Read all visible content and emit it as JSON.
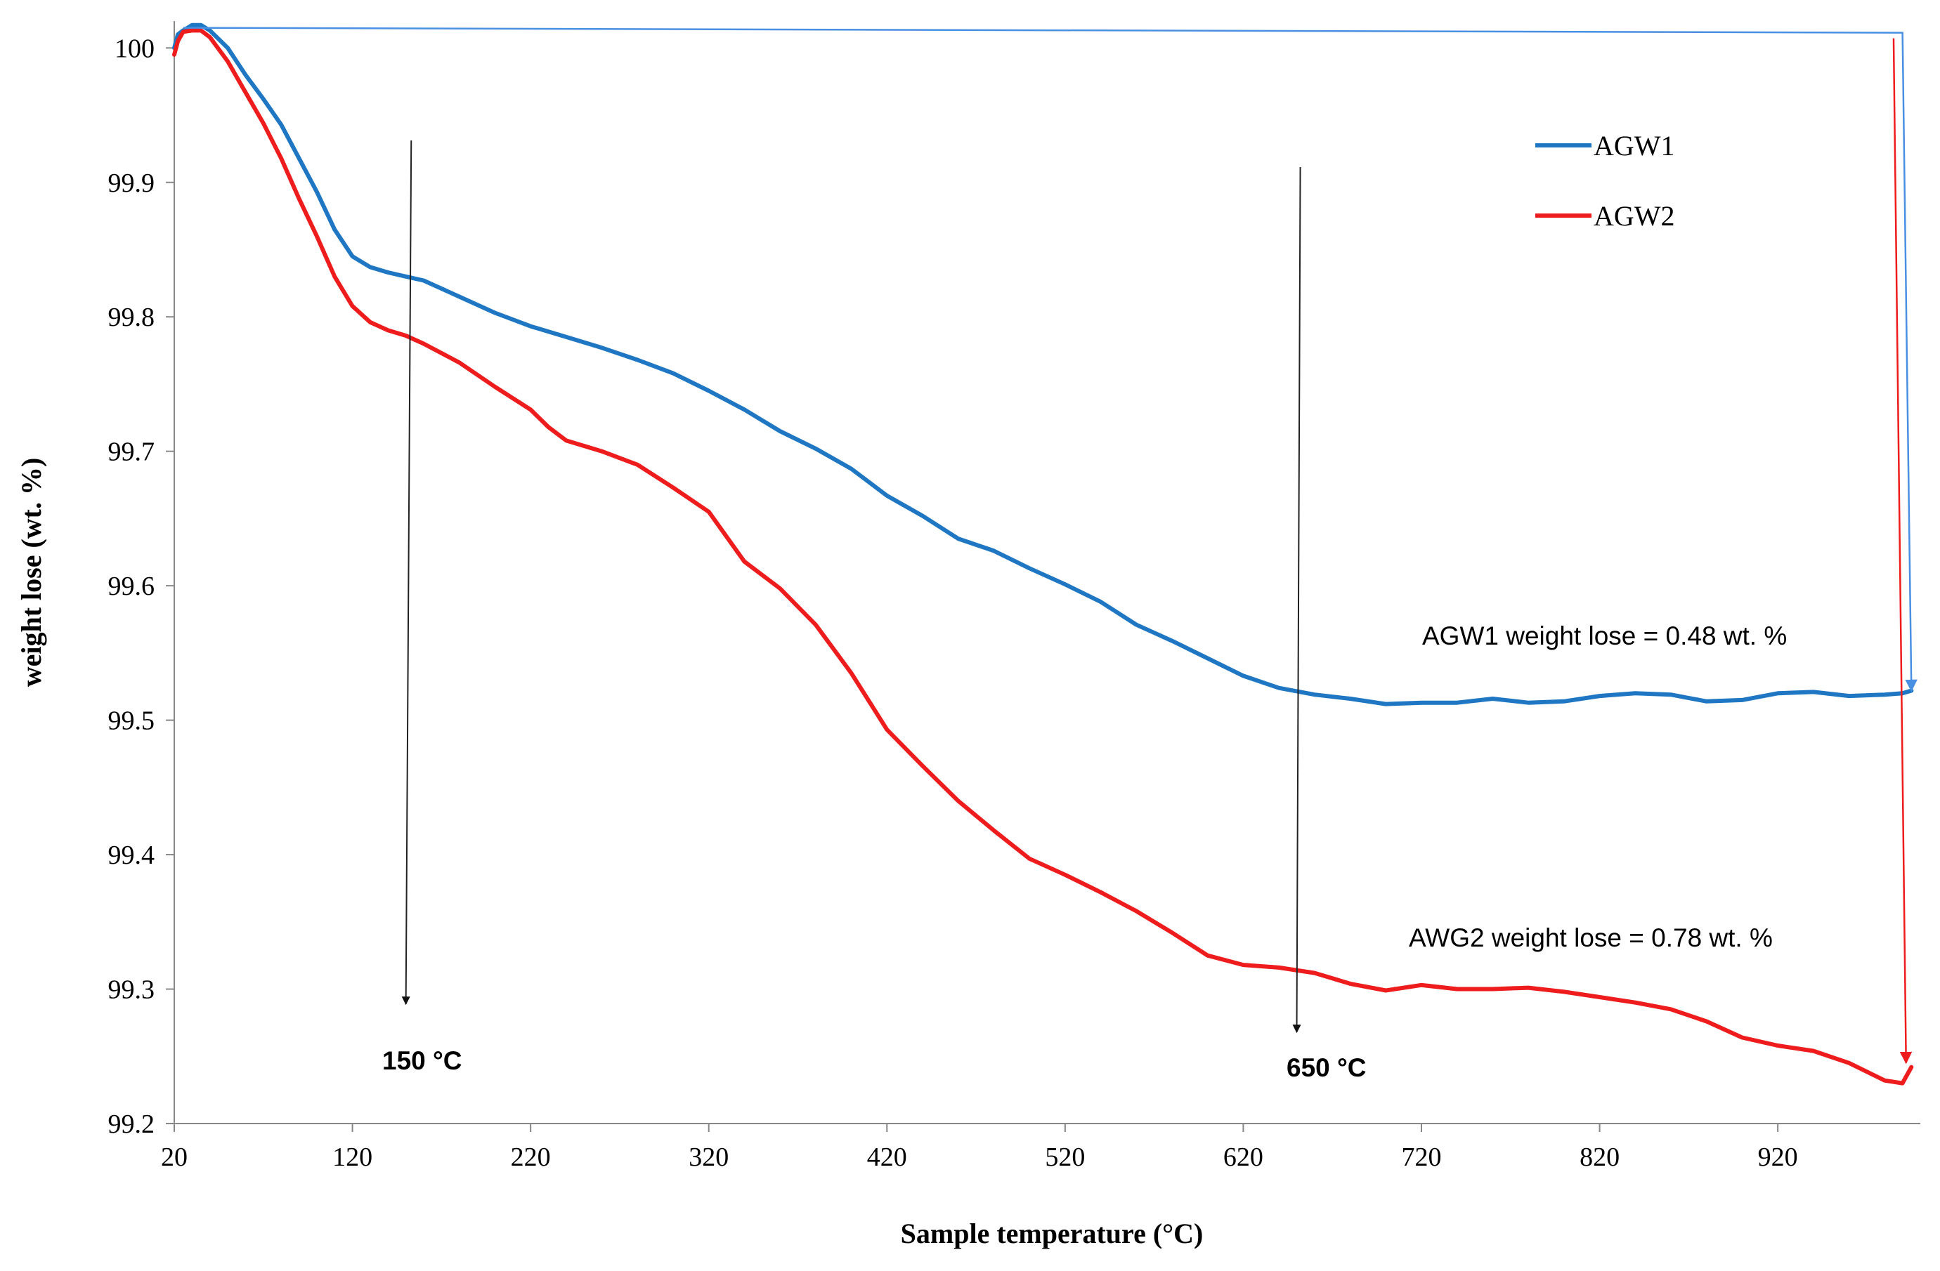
{
  "chart_data": {
    "type": "line",
    "title": "",
    "xlabel": "Sample temperature (°C)",
    "ylabel": "weight lose (wt. %)",
    "xlim": [
      20,
      1000
    ],
    "ylim": [
      99.2,
      100.02
    ],
    "x_ticks": [
      20,
      120,
      220,
      320,
      420,
      520,
      620,
      720,
      820,
      920
    ],
    "y_ticks": [
      99.2,
      99.3,
      99.4,
      99.5,
      99.6,
      99.7,
      99.8,
      99.9,
      100
    ],
    "x_tick_labels": [
      "20",
      "120",
      "220",
      "320",
      "420",
      "520",
      "620",
      "720",
      "820",
      "920"
    ],
    "y_tick_labels": [
      "99.2",
      "99.3",
      "99.4",
      "99.5",
      "99.6",
      "99.7",
      "99.8",
      "99.9",
      "100"
    ],
    "grid": false,
    "legend_position": "top-right",
    "series": [
      {
        "name": "AGW1",
        "color": "#1f77c4",
        "x": [
          20,
          22,
          25,
          30,
          35,
          40,
          50,
          60,
          70,
          80,
          90,
          100,
          110,
          120,
          130,
          140,
          150,
          160,
          180,
          200,
          220,
          240,
          260,
          280,
          300,
          320,
          340,
          360,
          380,
          400,
          420,
          440,
          460,
          480,
          500,
          520,
          540,
          560,
          580,
          600,
          620,
          640,
          660,
          680,
          700,
          720,
          740,
          760,
          780,
          800,
          820,
          840,
          860,
          880,
          900,
          920,
          940,
          960,
          980,
          990,
          995
        ],
        "values": [
          100.0,
          100.01,
          100.013,
          100.017,
          100.017,
          100.013,
          100.0,
          99.98,
          99.962,
          99.943,
          99.918,
          99.893,
          99.865,
          99.845,
          99.837,
          99.833,
          99.83,
          99.827,
          99.815,
          99.803,
          99.793,
          99.785,
          99.777,
          99.768,
          99.758,
          99.745,
          99.731,
          99.715,
          99.702,
          99.687,
          99.667,
          99.652,
          99.635,
          99.626,
          99.613,
          99.601,
          99.588,
          99.571,
          99.559,
          99.546,
          99.533,
          99.524,
          99.519,
          99.516,
          99.512,
          99.513,
          99.513,
          99.516,
          99.513,
          99.514,
          99.518,
          99.52,
          99.519,
          99.514,
          99.515,
          99.52,
          99.521,
          99.518,
          99.519,
          99.52,
          99.522
        ]
      },
      {
        "name": "AGW2",
        "color": "#ee1c1c",
        "x": [
          20,
          22,
          25,
          30,
          35,
          40,
          50,
          60,
          70,
          80,
          90,
          100,
          110,
          120,
          130,
          140,
          150,
          160,
          180,
          200,
          220,
          230,
          240,
          260,
          280,
          300,
          320,
          340,
          360,
          380,
          400,
          420,
          440,
          460,
          480,
          500,
          520,
          540,
          560,
          580,
          600,
          620,
          640,
          660,
          680,
          700,
          720,
          740,
          760,
          780,
          800,
          820,
          840,
          860,
          880,
          900,
          920,
          940,
          960,
          980,
          990,
          995
        ],
        "values": [
          99.995,
          100.005,
          100.012,
          100.013,
          100.013,
          100.008,
          99.99,
          99.967,
          99.944,
          99.918,
          99.888,
          99.86,
          99.83,
          99.808,
          99.796,
          99.79,
          99.786,
          99.78,
          99.766,
          99.748,
          99.731,
          99.718,
          99.708,
          99.7,
          99.69,
          99.673,
          99.655,
          99.618,
          99.598,
          99.571,
          99.535,
          99.493,
          99.466,
          99.44,
          99.418,
          99.397,
          99.385,
          99.372,
          99.358,
          99.342,
          99.325,
          99.318,
          99.316,
          99.312,
          99.304,
          99.299,
          99.303,
          99.3,
          99.3,
          99.301,
          99.298,
          99.294,
          99.29,
          99.285,
          99.276,
          99.264,
          99.258,
          99.254,
          99.245,
          99.232,
          99.23,
          99.242
        ]
      }
    ],
    "annotations": {
      "agw1_loss": "AGW1 weight lose = 0.48 wt. %",
      "agw2_loss": "AWG2 weight lose = 0.78 wt. %",
      "marker_150": "150 °C",
      "marker_650": "650 °C"
    },
    "marker_temperatures": [
      150,
      650
    ],
    "arrow_colors": {
      "marker": "#222222",
      "agw1_drop": "#4a90e2",
      "agw2_drop": "#ee1c1c"
    }
  }
}
